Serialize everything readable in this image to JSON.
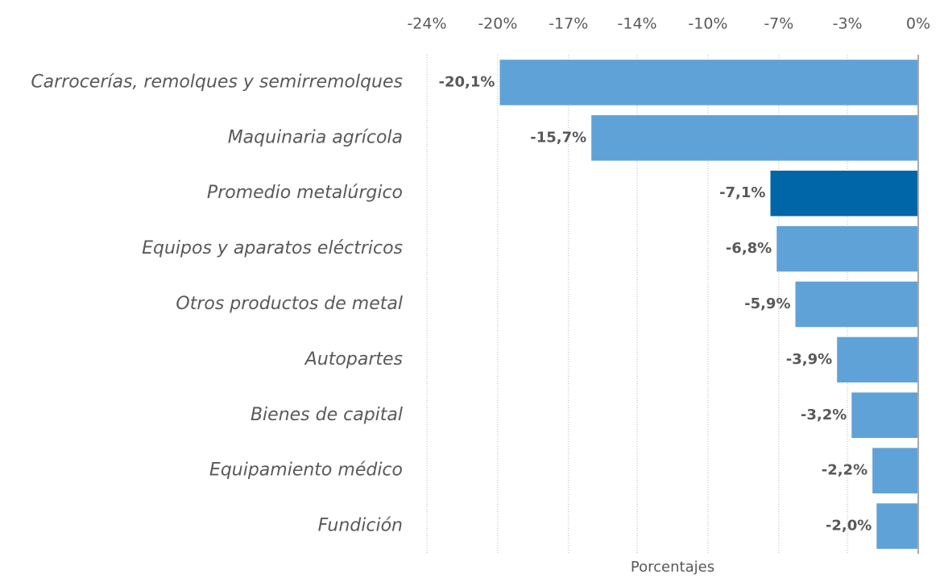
{
  "chart_data": {
    "type": "bar",
    "orientation": "horizontal",
    "x_label": "Porcentajes",
    "categories": [
      "Carrocerías, remolques y semirremolques",
      "Maquinaria agrícola",
      "Promedio metalúrgico",
      "Equipos y aparatos eléctricos",
      "Otros productos de metal",
      "Autopartes",
      "Bienes de capital",
      "Equipamiento médico",
      "Fundición"
    ],
    "values": [
      -20.1,
      -15.7,
      -7.1,
      -6.8,
      -5.9,
      -3.9,
      -3.2,
      -2.2,
      -2.0
    ],
    "value_labels": [
      "-20,1%",
      "-15,7%",
      "-7,1%",
      "-6,8%",
      "-5,9%",
      "-3,9%",
      "-3,2%",
      "-2,2%",
      "-2,0%"
    ],
    "colors": [
      "#5fa2d8",
      "#5fa2d8",
      "#0066a8",
      "#5fa2d8",
      "#5fa2d8",
      "#5fa2d8",
      "#5fa2d8",
      "#5fa2d8",
      "#5fa2d8"
    ],
    "xlim": [
      -23.6,
      0
    ],
    "xticks": [
      {
        "value": -23.6,
        "label": "-24%"
      },
      {
        "value": -20.2,
        "label": "-20%"
      },
      {
        "value": -16.8,
        "label": "-17%"
      },
      {
        "value": -13.5,
        "label": "-14%"
      },
      {
        "value": -10.1,
        "label": "-10%"
      },
      {
        "value": -6.7,
        "label": "-7%"
      },
      {
        "value": -3.4,
        "label": "-3%"
      },
      {
        "value": 0,
        "label": "0%"
      }
    ],
    "grid": true
  }
}
